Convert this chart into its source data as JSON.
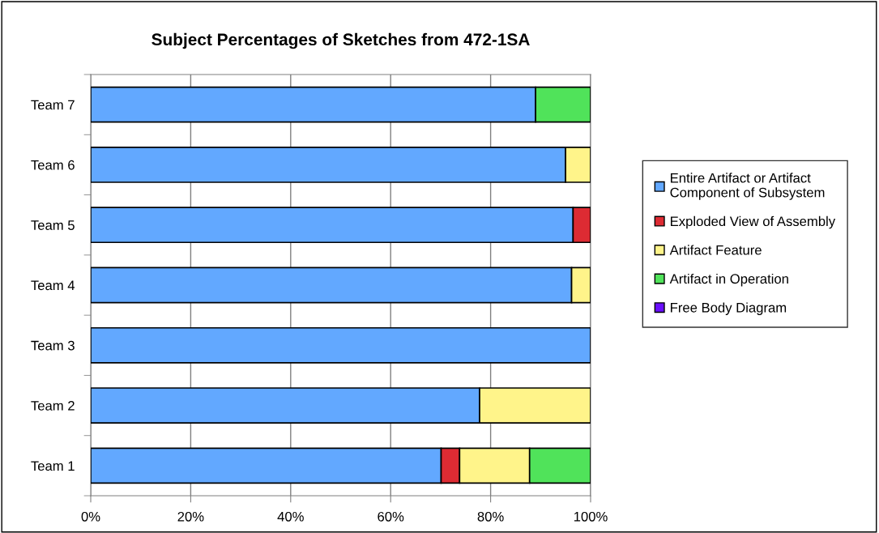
{
  "chart_data": {
    "type": "bar",
    "orientation": "horizontal",
    "stacked": true,
    "title": "Subject Percentages of Sketches from 472-1SA",
    "categories": [
      "Team 7",
      "Team 6",
      "Team 5",
      "Team 4",
      "Team 3",
      "Team 2",
      "Team 1"
    ],
    "series": [
      {
        "name": "Entire Artifact or Artifact Component of Subsystem",
        "color": "#62a8ff",
        "values": [
          89,
          95,
          96.5,
          96.2,
          100,
          77.8,
          70.1
        ]
      },
      {
        "name": "Exploded View of Assembly",
        "color": "#dd2b33",
        "values": [
          null,
          null,
          3.5,
          null,
          null,
          null,
          3.7
        ]
      },
      {
        "name": "Artifact Feature",
        "color": "#fff48a",
        "values": [
          null,
          5,
          null,
          3.8,
          null,
          22.2,
          14
        ]
      },
      {
        "name": "Artifact in Operation",
        "color": "#50e35a",
        "values": [
          11,
          null,
          null,
          null,
          null,
          null,
          12.2
        ]
      },
      {
        "name": "Free Body Diagram",
        "color": "#6a0fff",
        "values": [
          null,
          null,
          null,
          null,
          null,
          null,
          null
        ]
      }
    ],
    "xlim": [
      0,
      100
    ],
    "xticks": [
      {
        "value": 0,
        "label": "0%"
      },
      {
        "value": 20,
        "label": "20%"
      },
      {
        "value": 40,
        "label": "40%"
      },
      {
        "value": 60,
        "label": "60%"
      },
      {
        "value": 80,
        "label": "80%"
      },
      {
        "value": 100,
        "label": "100%"
      }
    ],
    "grid": "x",
    "legend": "right"
  }
}
